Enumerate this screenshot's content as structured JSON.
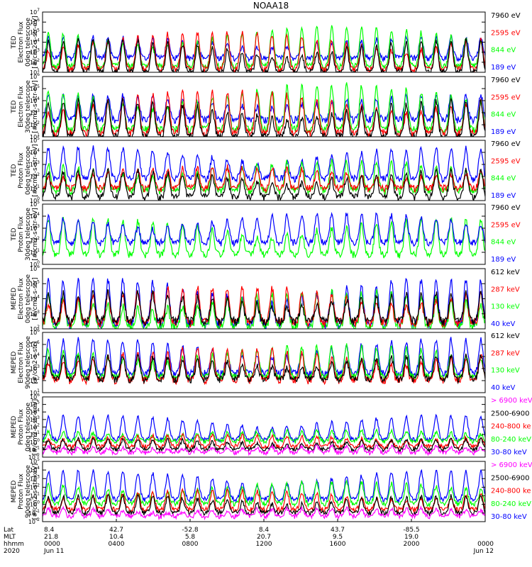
{
  "figure_title": "NOAA18",
  "colors": {
    "black": "#000000",
    "red": "#ff0000",
    "green": "#00ff00",
    "blue": "#0000ff",
    "magenta": "#ff00ff"
  },
  "chart_data": [
    {
      "type": "line",
      "id": "ted-e-0",
      "ylabel": [
        "TED",
        "Electron Flux",
        "0deg telescope",
        "[#/cm2-s-str-eV]"
      ],
      "log_ylim": [
        1,
        7
      ],
      "legend": [
        {
          "label": "7960 eV",
          "color": "#000000"
        },
        {
          "label": "2595 eV",
          "color": "#ff0000"
        },
        {
          "label": "844 eV",
          "color": "#00ff00"
        },
        {
          "label": "189 eV",
          "color": "#0000ff"
        }
      ],
      "series": [
        {
          "name": "189 eV",
          "color": "#0000ff",
          "floor": 2.4,
          "peak": 4.5
        },
        {
          "name": "844 eV",
          "color": "#00ff00",
          "floor": 1.6,
          "peak": 5.5
        },
        {
          "name": "2595 eV",
          "color": "#ff0000",
          "floor": 1.3,
          "peak": 5.0
        },
        {
          "name": "7960 eV",
          "color": "#000000",
          "floor": 1.0,
          "peak": 4.2
        }
      ]
    },
    {
      "type": "line",
      "id": "ted-e-30",
      "ylabel": [
        "TED",
        "Electron Flux",
        "30deg telescope",
        "[#/cm2-s-str-eV]"
      ],
      "log_ylim": [
        1,
        6
      ],
      "legend": [
        {
          "label": "7960 eV",
          "color": "#000000"
        },
        {
          "label": "2595 eV",
          "color": "#ff0000"
        },
        {
          "label": "844 eV",
          "color": "#00ff00"
        },
        {
          "label": "189 eV",
          "color": "#0000ff"
        }
      ],
      "series": [
        {
          "name": "189 eV",
          "color": "#0000ff",
          "floor": 2.4,
          "peak": 4.5
        },
        {
          "name": "844 eV",
          "color": "#00ff00",
          "floor": 1.6,
          "peak": 5.3
        },
        {
          "name": "2595 eV",
          "color": "#ff0000",
          "floor": 1.3,
          "peak": 4.8
        },
        {
          "name": "7960 eV",
          "color": "#000000",
          "floor": 1.0,
          "peak": 4.0
        }
      ]
    },
    {
      "type": "line",
      "id": "ted-p-0",
      "ylabel": [
        "TED",
        "Proton Flux",
        "0deg telescope",
        "[#/cm2-s-str-eV]"
      ],
      "log_ylim": [
        0,
        5
      ],
      "legend": [
        {
          "label": "7960 eV",
          "color": "#000000"
        },
        {
          "label": "2595 eV",
          "color": "#ff0000"
        },
        {
          "label": "844 eV",
          "color": "#00ff00"
        },
        {
          "label": "189 eV",
          "color": "#0000ff"
        }
      ],
      "series": [
        {
          "name": "189 eV",
          "color": "#0000ff",
          "floor": 1.8,
          "peak": 4.4
        },
        {
          "name": "844 eV",
          "color": "#00ff00",
          "floor": 0.8,
          "peak": 3.3
        },
        {
          "name": "2595 eV",
          "color": "#ff0000",
          "floor": 1.0,
          "peak": 2.8
        },
        {
          "name": "7960 eV",
          "color": "#000000",
          "floor": 0.3,
          "peak": 2.5
        }
      ]
    },
    {
      "type": "line",
      "id": "ted-p-30",
      "ylabel": [
        "TED",
        "Proton Flux",
        "30deg telescope",
        "[#/cm2-s-str-eV]"
      ],
      "log_ylim": [
        0,
        5
      ],
      "legend": [
        {
          "label": "7960 eV",
          "color": "#000000"
        },
        {
          "label": "2595 eV",
          "color": "#ff0000"
        },
        {
          "label": "844 eV",
          "color": "#00ff00"
        },
        {
          "label": "189 eV",
          "color": "#0000ff"
        }
      ],
      "series": [
        {
          "name": "844 eV",
          "color": "#00ff00",
          "floor": 0.8,
          "peak": 3.8
        },
        {
          "name": "189 eV",
          "color": "#0000ff",
          "floor": 1.8,
          "peak": 4.2
        }
      ]
    },
    {
      "type": "line",
      "id": "meped-e-0",
      "ylabel": [
        "MEPED",
        "Electron Flux",
        "0deg telescope",
        "[#/cm2-s-str]"
      ],
      "log_ylim": [
        2,
        6
      ],
      "legend": [
        {
          "label": "612 keV",
          "color": "#000000"
        },
        {
          "label": "287 keV",
          "color": "#ff0000"
        },
        {
          "label": "130 keV",
          "color": "#00ff00"
        },
        {
          "label": "40 keV",
          "color": "#0000ff"
        }
      ],
      "series": [
        {
          "name": "40 keV",
          "color": "#0000ff",
          "floor": 2.3,
          "peak": 5.3
        },
        {
          "name": "130 keV",
          "color": "#00ff00",
          "floor": 2.1,
          "peak": 4.5
        },
        {
          "name": "287 keV",
          "color": "#ff0000",
          "floor": 2.4,
          "peak": 4.8
        },
        {
          "name": "612 keV",
          "color": "#000000",
          "floor": 2.5,
          "peak": 4.4
        }
      ]
    },
    {
      "type": "line",
      "id": "meped-e-90",
      "ylabel": [
        "MEPED",
        "Electron Flux",
        "90deg telescope",
        "[#/cm2-s-str]"
      ],
      "log_ylim": [
        1,
        6
      ],
      "legend": [
        {
          "label": "612 keV",
          "color": "#000000"
        },
        {
          "label": "287 keV",
          "color": "#ff0000"
        },
        {
          "label": "130 keV",
          "color": "#00ff00"
        },
        {
          "label": "40 keV",
          "color": "#0000ff"
        }
      ],
      "series": [
        {
          "name": "40 keV",
          "color": "#0000ff",
          "floor": 2.6,
          "peak": 5.4
        },
        {
          "name": "130 keV",
          "color": "#00ff00",
          "floor": 2.3,
          "peak": 4.9
        },
        {
          "name": "287 keV",
          "color": "#ff0000",
          "floor": 2.0,
          "peak": 4.7
        },
        {
          "name": "612 keV",
          "color": "#000000",
          "floor": 2.1,
          "peak": 4.1
        }
      ]
    },
    {
      "type": "line",
      "id": "meped-p-0",
      "ylabel": [
        "MEPED",
        "Proton Flux",
        "0deg telescope",
        "[#/cm2-s-str-keV]"
      ],
      "log_ylim": [
        -2,
        6
      ],
      "legend": [
        {
          "label": "> 6900 keV",
          "color": "#ff00ff"
        },
        {
          "label": "2500-6900",
          "color": "#000000"
        },
        {
          "label": "240-800 ke",
          "color": "#ff0000"
        },
        {
          "label": "80-240 keV",
          "color": "#00ff00"
        },
        {
          "label": "30-80 keV",
          "color": "#0000ff"
        }
      ],
      "series": [
        {
          "name": "30-80 keV",
          "color": "#0000ff",
          "floor": 0.3,
          "peak": 3.5
        },
        {
          "name": "80-240 keV",
          "color": "#00ff00",
          "floor": 0.1,
          "peak": 1.6
        },
        {
          "name": "240-800 ke",
          "color": "#ff0000",
          "floor": -0.6,
          "peak": 1.0
        },
        {
          "name": "2500-6900",
          "color": "#000000",
          "floor": -1.0,
          "peak": 0.4
        },
        {
          "name": "> 6900 keV",
          "color": "#ff00ff",
          "floor": -1.4,
          "peak": -0.5
        }
      ]
    },
    {
      "type": "line",
      "id": "meped-p-90",
      "ylabel": [
        "MEPED",
        "Proton Flux",
        "90deg telescope",
        "[#/cm2-s-str-keV]"
      ],
      "log_ylim": [
        -2,
        5
      ],
      "legend": [
        {
          "label": "> 6900 keV",
          "color": "#ff00ff"
        },
        {
          "label": "2500-6900",
          "color": "#000000"
        },
        {
          "label": "240-800 ke",
          "color": "#ff0000"
        },
        {
          "label": "80-240 keV",
          "color": "#00ff00"
        },
        {
          "label": "30-80 keV",
          "color": "#0000ff"
        }
      ],
      "series": [
        {
          "name": "30-80 keV",
          "color": "#0000ff",
          "floor": 0.6,
          "peak": 3.9
        },
        {
          "name": "80-240 keV",
          "color": "#00ff00",
          "floor": 0.1,
          "peak": 2.6
        },
        {
          "name": "240-800 ke",
          "color": "#ff0000",
          "floor": -0.6,
          "peak": 1.6
        },
        {
          "name": "2500-6900",
          "color": "#000000",
          "floor": -1.0,
          "peak": 1.0
        },
        {
          "name": "> 6900 keV",
          "color": "#ff00ff",
          "floor": -1.4,
          "peak": -0.4
        }
      ]
    }
  ],
  "time_axis": {
    "row_labels": [
      "Lat",
      "MLT",
      "hhmm",
      "2020"
    ],
    "hours": [
      0,
      4,
      8,
      12,
      16,
      20,
      24
    ],
    "ticks": [
      {
        "lat": "8.4",
        "mlt": "21.8",
        "hhmm": "0000",
        "date": "Jun 11"
      },
      {
        "lat": "42.7",
        "mlt": "10.4",
        "hhmm": "0400",
        "date": ""
      },
      {
        "lat": "-52.8",
        "mlt": "5.8",
        "hhmm": "0800",
        "date": ""
      },
      {
        "lat": "8.4",
        "mlt": "20.7",
        "hhmm": "1200",
        "date": ""
      },
      {
        "lat": "43.7",
        "mlt": "9.5",
        "hhmm": "1600",
        "date": ""
      },
      {
        "lat": "-85.5",
        "mlt": "19.0",
        "hhmm": "2000",
        "date": ""
      },
      {
        "lat": "",
        "mlt": "",
        "hhmm": "0000",
        "date": "Jun 12"
      }
    ]
  }
}
